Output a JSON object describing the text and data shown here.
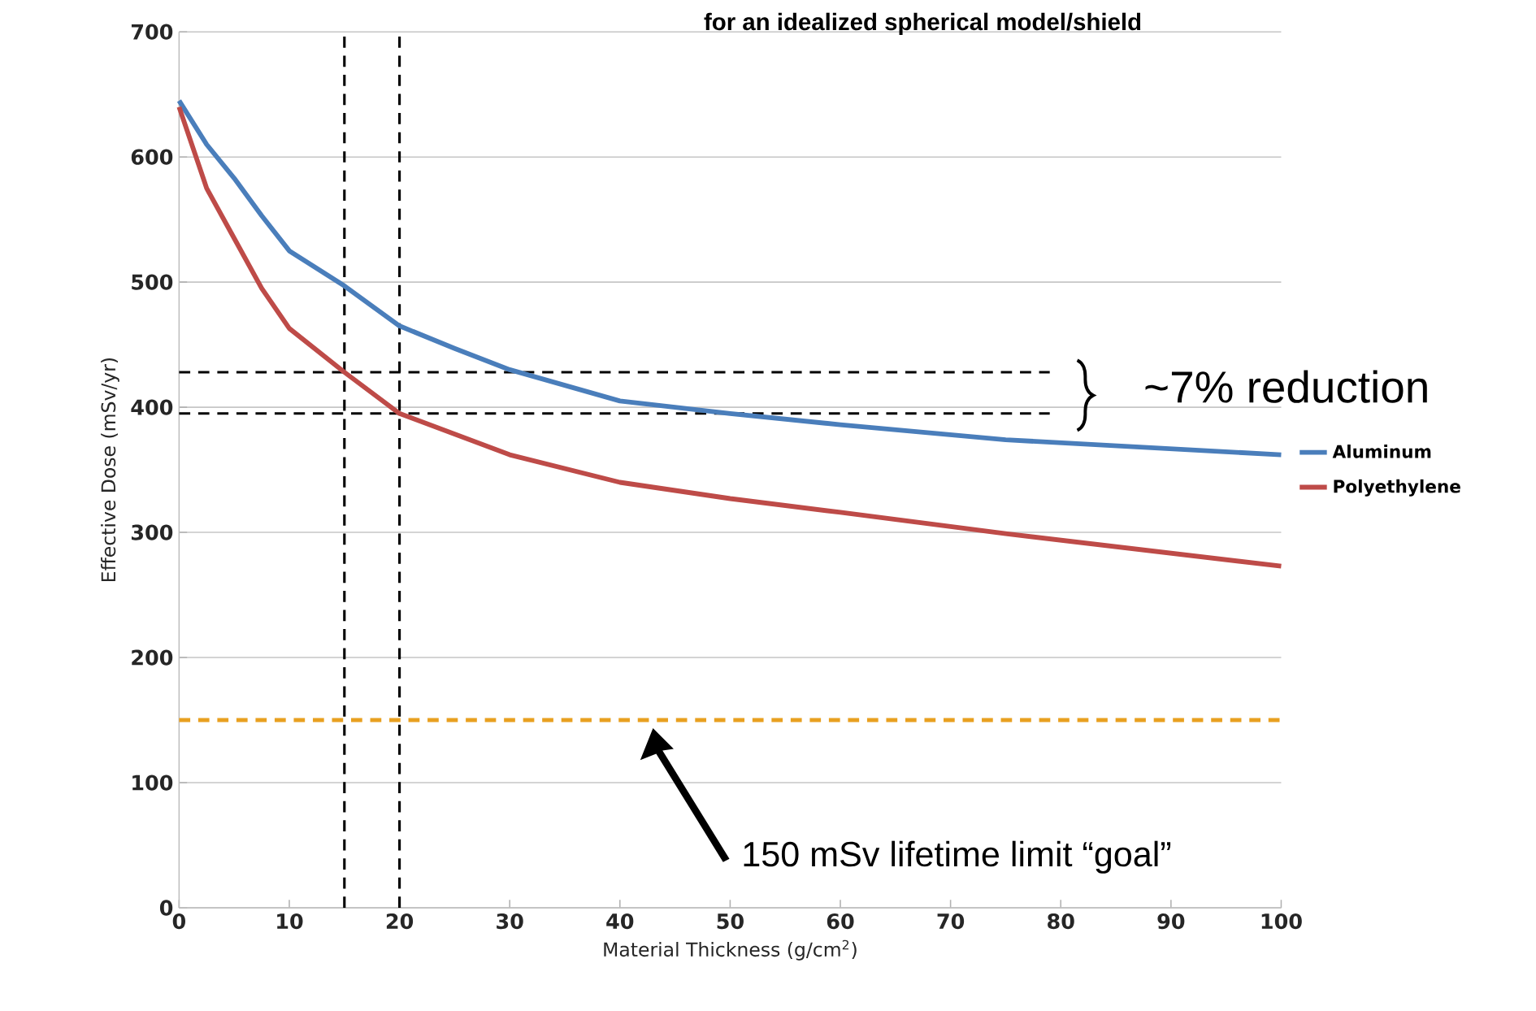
{
  "chart_data": {
    "type": "line",
    "title": "for an idealized spherical model/shield",
    "xlabel": "Material Thickness (g/cm$^{2}$)",
    "ylabel": "Effective Dose (mSv/yr)",
    "series": [
      {
        "name": "Aluminum",
        "color": "#4a7ebb",
        "x": [
          0,
          2.5,
          5,
          7.5,
          10,
          15,
          20,
          25,
          30,
          40,
          50,
          60,
          75,
          100
        ],
        "values": [
          645,
          610,
          583,
          553,
          525,
          497,
          465,
          447,
          430,
          405,
          395,
          386,
          374,
          362
        ]
      },
      {
        "name": "Polyethylene",
        "color": "#be4b48",
        "x": [
          0,
          2.5,
          5,
          7.5,
          10,
          15,
          20,
          30,
          40,
          50,
          60,
          75,
          100
        ],
        "values": [
          640,
          575,
          535,
          495,
          463,
          428,
          395,
          362,
          340,
          327,
          316,
          299,
          273
        ]
      }
    ],
    "xlim": [
      0,
      100
    ],
    "ylim": [
      0,
      700
    ],
    "xticks": [
      0,
      10,
      20,
      30,
      40,
      50,
      60,
      70,
      80,
      90,
      100
    ],
    "yticks": [
      0,
      100,
      200,
      300,
      400,
      500,
      600,
      700
    ],
    "grid": "y",
    "legend": "right",
    "ref_lines": [
      {
        "axis": "x",
        "value": 15,
        "color": "#000000",
        "line_style": "dashed"
      },
      {
        "axis": "x",
        "value": 20,
        "color": "#000000",
        "line_style": "dashed"
      },
      {
        "axis": "y",
        "value": 428,
        "color": "#000000",
        "line_style": "dashed"
      },
      {
        "axis": "y",
        "value": 395,
        "color": "#000000",
        "line_style": "dashed"
      },
      {
        "axis": "y",
        "value": 150,
        "color": "#e8a020",
        "line_style": "dashed"
      }
    ],
    "annotations": [
      "~7% reduction",
      "150 mSv lifetime limit “goal”"
    ]
  }
}
